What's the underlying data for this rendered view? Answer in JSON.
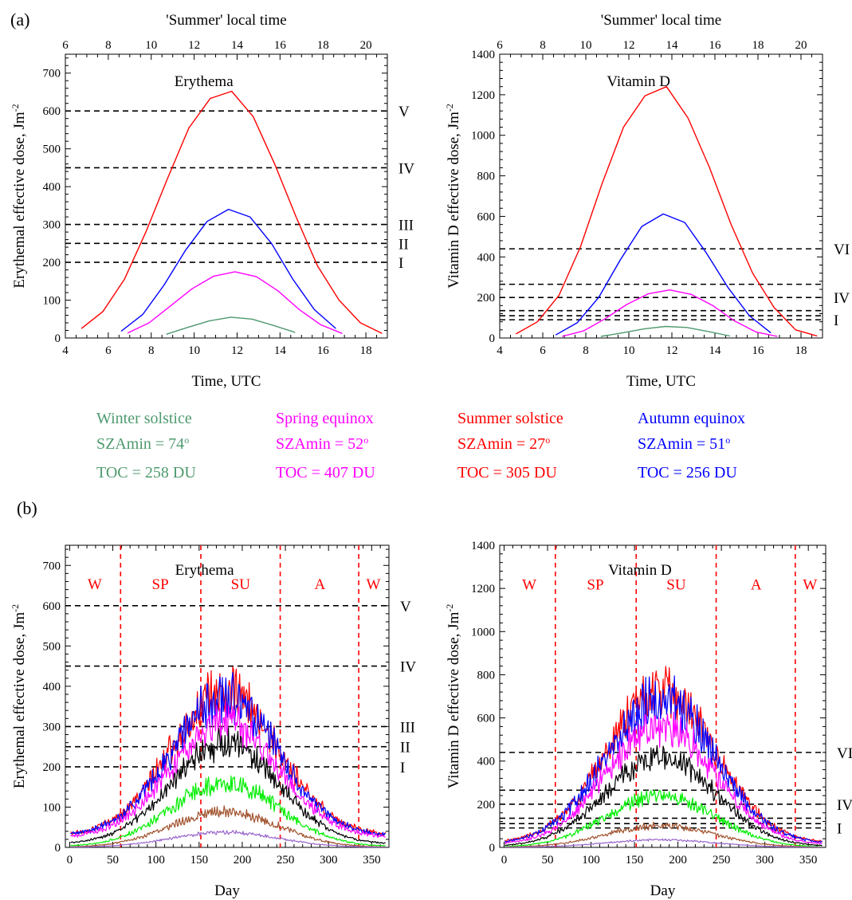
{
  "panel_labels": {
    "a": "(a)",
    "b": "(b)"
  },
  "legend": [
    {
      "name": "Winter solstice",
      "sza": "SZAmin = 74",
      "toc": "TOC = 258 DU",
      "color": "#4e9a6e"
    },
    {
      "name": "Spring equinox",
      "sza": "SZAmin = 52",
      "toc": "TOC = 407 DU",
      "color": "#ff00ff"
    },
    {
      "name": "Summer solstice",
      "sza": "SZAmin = 27",
      "toc": "TOC = 305 DU",
      "color": "#ff0000"
    },
    {
      "name": "Autumn equinox",
      "sza": "SZAmin = 51",
      "toc": "TOC = 256 DU",
      "color": "#0000ff"
    }
  ],
  "legend_degree_symbol": "o",
  "chart_data": [
    {
      "type": "line",
      "panel": "a",
      "title": "Erythema",
      "xlabel": "Time, UTC",
      "x2label": "'Summer' local time",
      "ylabel": "Erythemal effective dose, Jm",
      "ylabel_sup": "-2",
      "xlim": [
        4,
        19
      ],
      "ylim": [
        0,
        750
      ],
      "x_ticks": [
        4,
        6,
        8,
        10,
        12,
        14,
        16,
        18
      ],
      "x2_offset": 2,
      "x2_ticks": [
        6,
        8,
        10,
        12,
        14,
        16,
        18,
        20
      ],
      "y_ticks": [
        0,
        100,
        200,
        300,
        400,
        500,
        600,
        700
      ],
      "thresholds": [
        {
          "value": 600,
          "label": "V"
        },
        {
          "value": 450,
          "label": "IV"
        },
        {
          "value": 300,
          "label": "III"
        },
        {
          "value": 250,
          "label": "II"
        },
        {
          "value": 200,
          "label": "I"
        }
      ],
      "series": [
        {
          "name": "Summer solstice",
          "color": "#ff0000",
          "x": [
            4.75,
            5.75,
            6.75,
            7.75,
            8.75,
            9.75,
            10.75,
            11.75,
            12.75,
            13.75,
            14.75,
            15.75,
            16.75,
            17.75,
            18.75
          ],
          "y": [
            25,
            70,
            155,
            280,
            420,
            555,
            633,
            652,
            585,
            460,
            320,
            190,
            100,
            40,
            12
          ]
        },
        {
          "name": "Autumn equinox",
          "color": "#0000ff",
          "x": [
            6.6,
            7.6,
            8.6,
            9.6,
            10.6,
            11.6,
            12.6,
            13.6,
            14.6,
            15.6,
            16.6
          ],
          "y": [
            18,
            62,
            140,
            232,
            308,
            340,
            320,
            250,
            155,
            75,
            25
          ]
        },
        {
          "name": "Spring equinox",
          "color": "#ff00ff",
          "x": [
            6.9,
            7.9,
            8.9,
            9.9,
            10.9,
            11.9,
            12.9,
            13.9,
            14.9,
            15.9,
            16.9
          ],
          "y": [
            13,
            40,
            85,
            130,
            163,
            175,
            162,
            125,
            75,
            35,
            12
          ]
        },
        {
          "name": "Winter solstice",
          "color": "#4e9a6e",
          "x": [
            8.7,
            9.7,
            10.7,
            11.7,
            12.7,
            13.7,
            14.7
          ],
          "y": [
            10,
            28,
            45,
            55,
            50,
            33,
            15
          ]
        }
      ]
    },
    {
      "type": "line",
      "panel": "a",
      "title": "Vitamin D",
      "xlabel": "Time, UTC",
      "x2label": "'Summer' local time",
      "ylabel": "Vitamin D effective dose, Jm",
      "ylabel_sup": "-2",
      "xlim": [
        4,
        19
      ],
      "ylim": [
        0,
        1400
      ],
      "x_ticks": [
        4,
        6,
        8,
        10,
        12,
        14,
        16,
        18
      ],
      "x2_offset": 2,
      "x2_ticks": [
        6,
        8,
        10,
        12,
        14,
        16,
        18,
        20
      ],
      "y_ticks": [
        0,
        200,
        400,
        600,
        800,
        1000,
        1200,
        1400
      ],
      "thresholds": [
        {
          "value": 440,
          "label": "VI"
        },
        {
          "value": 265,
          "label": ""
        },
        {
          "value": 200,
          "label": "IV"
        },
        {
          "value": 135,
          "label": ""
        },
        {
          "value": 110,
          "label": ""
        },
        {
          "value": 90,
          "label": "I"
        }
      ],
      "series": [
        {
          "name": "Summer solstice",
          "color": "#ff0000",
          "x": [
            4.75,
            5.75,
            6.75,
            7.75,
            8.75,
            9.75,
            10.75,
            11.75,
            12.75,
            13.75,
            14.75,
            15.75,
            16.75,
            17.75,
            18.75
          ],
          "y": [
            20,
            80,
            210,
            450,
            760,
            1040,
            1195,
            1240,
            1085,
            840,
            560,
            320,
            150,
            40,
            10
          ]
        },
        {
          "name": "Autumn equinox",
          "color": "#0000ff",
          "x": [
            6.6,
            7.6,
            8.6,
            9.6,
            10.6,
            11.6,
            12.6,
            13.6,
            14.6,
            15.6,
            16.6
          ],
          "y": [
            15,
            75,
            200,
            385,
            550,
            612,
            570,
            420,
            250,
            110,
            25
          ]
        },
        {
          "name": "Spring equinox",
          "color": "#ff00ff",
          "x": [
            6.9,
            7.9,
            8.9,
            9.9,
            10.9,
            11.9,
            12.9,
            13.9,
            14.9,
            15.9,
            16.9
          ],
          "y": [
            8,
            35,
            95,
            165,
            218,
            237,
            215,
            160,
            85,
            30,
            8
          ]
        },
        {
          "name": "Winter solstice",
          "color": "#4e9a6e",
          "x": [
            8.7,
            9.7,
            10.7,
            11.7,
            12.7,
            13.7,
            14.7
          ],
          "y": [
            8,
            25,
            45,
            57,
            52,
            32,
            10
          ]
        }
      ]
    },
    {
      "type": "line",
      "panel": "b",
      "title": "Erythema",
      "xlabel": "Day",
      "ylabel": "Erythemal effective dose, Jm",
      "ylabel_sup": "-2",
      "xlim": [
        -5,
        370
      ],
      "ylim": [
        0,
        750
      ],
      "x_ticks": [
        0,
        50,
        100,
        150,
        200,
        250,
        300,
        350
      ],
      "y_ticks": [
        0,
        100,
        200,
        300,
        400,
        500,
        600,
        700
      ],
      "thresholds": [
        {
          "value": 600,
          "label": "V"
        },
        {
          "value": 450,
          "label": "IV"
        },
        {
          "value": 300,
          "label": "III"
        },
        {
          "value": 250,
          "label": "II"
        },
        {
          "value": 200,
          "label": "I"
        }
      ],
      "season_bounds": [
        59,
        152,
        244,
        335
      ],
      "season_labels": [
        {
          "label": "W",
          "x": 29
        },
        {
          "label": "SP",
          "x": 105
        },
        {
          "label": "SU",
          "x": 198
        },
        {
          "label": "A",
          "x": 290
        },
        {
          "label": "W",
          "x": 352
        }
      ],
      "season_label_y": 655,
      "series": [
        {
          "color": "#ff0000",
          "base": 30,
          "peak": 385,
          "noise": 0.14
        },
        {
          "color": "#0000ff",
          "base": 28,
          "peak": 370,
          "noise": 0.14
        },
        {
          "color": "#ff00ff",
          "base": 24,
          "peak": 310,
          "noise": 0.13
        },
        {
          "color": "#000000",
          "base": 8,
          "peak": 255,
          "noise": 0.12
        },
        {
          "color": "#00ee00",
          "base": 2,
          "peak": 160,
          "noise": 0.14
        },
        {
          "color": "#a0522d",
          "base": 0,
          "peak": 88,
          "noise": 0.14
        },
        {
          "color": "#9966cc",
          "base": 0,
          "peak": 37,
          "noise": 0.12
        }
      ]
    },
    {
      "type": "line",
      "panel": "b",
      "title": "Vitamin D",
      "xlabel": "Day",
      "ylabel": "Vitamin D effective dose, Jm",
      "ylabel_sup": "-2",
      "xlim": [
        -5,
        370
      ],
      "ylim": [
        0,
        1400
      ],
      "x_ticks": [
        0,
        50,
        100,
        150,
        200,
        250,
        300,
        350
      ],
      "y_ticks": [
        0,
        200,
        400,
        600,
        800,
        1000,
        1200,
        1400
      ],
      "thresholds": [
        {
          "value": 440,
          "label": "VI"
        },
        {
          "value": 265,
          "label": ""
        },
        {
          "value": 200,
          "label": "IV"
        },
        {
          "value": 135,
          "label": ""
        },
        {
          "value": 110,
          "label": ""
        },
        {
          "value": 90,
          "label": "I"
        }
      ],
      "season_bounds": [
        59,
        152,
        244,
        335
      ],
      "season_labels": [
        {
          "label": "W",
          "x": 29
        },
        {
          "label": "SP",
          "x": 105
        },
        {
          "label": "SU",
          "x": 198
        },
        {
          "label": "A",
          "x": 290
        },
        {
          "label": "W",
          "x": 352
        }
      ],
      "season_label_y": 1220,
      "series": [
        {
          "color": "#ff0000",
          "base": 20,
          "peak": 720,
          "noise": 0.15
        },
        {
          "color": "#0000ff",
          "base": 18,
          "peak": 690,
          "noise": 0.15
        },
        {
          "color": "#ff00ff",
          "base": 12,
          "peak": 560,
          "noise": 0.14
        },
        {
          "color": "#000000",
          "base": 4,
          "peak": 420,
          "noise": 0.13
        },
        {
          "color": "#00ee00",
          "base": 0,
          "peak": 240,
          "noise": 0.14
        },
        {
          "color": "#a0522d",
          "base": 0,
          "peak": 100,
          "noise": 0.14
        },
        {
          "color": "#9966cc",
          "base": 0,
          "peak": 35,
          "noise": 0.12
        }
      ]
    }
  ]
}
